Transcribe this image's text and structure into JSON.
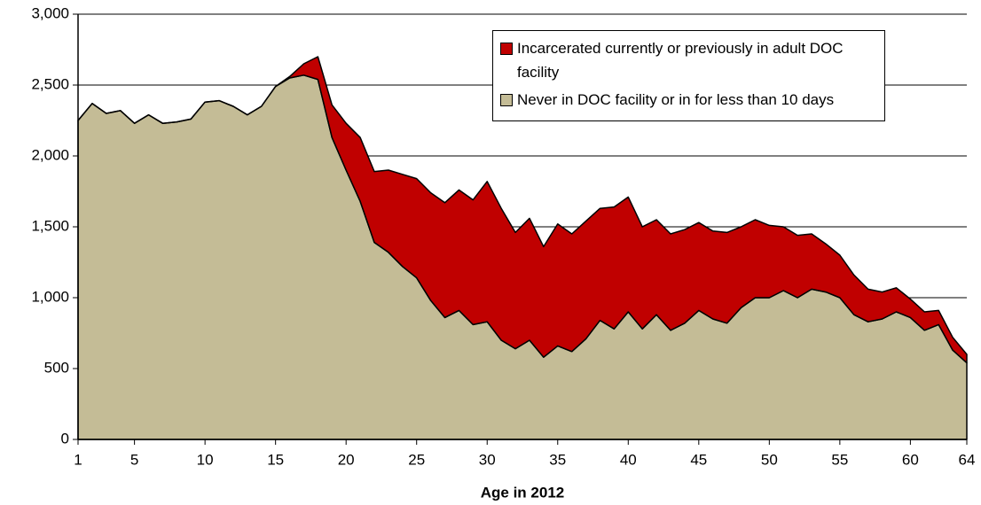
{
  "chart_data": {
    "type": "stacked_area",
    "x_label": "Age in 2012",
    "x": [
      1,
      2,
      3,
      4,
      5,
      6,
      7,
      8,
      9,
      10,
      11,
      12,
      13,
      14,
      15,
      16,
      17,
      18,
      19,
      20,
      21,
      22,
      23,
      24,
      25,
      26,
      27,
      28,
      29,
      30,
      31,
      32,
      33,
      34,
      35,
      36,
      37,
      38,
      39,
      40,
      41,
      42,
      43,
      44,
      45,
      46,
      47,
      48,
      49,
      50,
      51,
      52,
      53,
      54,
      55,
      56,
      57,
      58,
      59,
      60,
      61,
      62,
      63,
      64
    ],
    "series": [
      {
        "name": "Never in DOC facility or in for less than 10 days",
        "color": "#c4bc96",
        "values": [
          2250,
          2370,
          2300,
          2320,
          2230,
          2290,
          2230,
          2240,
          2260,
          2380,
          2390,
          2350,
          2290,
          2350,
          2490,
          2550,
          2570,
          2540,
          2130,
          1900,
          1680,
          1390,
          1320,
          1220,
          1140,
          980,
          860,
          910,
          810,
          830,
          700,
          640,
          700,
          580,
          660,
          620,
          710,
          840,
          780,
          900,
          780,
          880,
          770,
          820,
          910,
          850,
          820,
          930,
          1000,
          1000,
          1050,
          1000,
          1060,
          1040,
          1000,
          880,
          830,
          850,
          900,
          860,
          770,
          810,
          630,
          540
        ]
      },
      {
        "name": "Incarcerated currently or previously in adult DOC facility",
        "color": "#c00000",
        "values": [
          0,
          0,
          0,
          0,
          0,
          0,
          0,
          0,
          0,
          0,
          0,
          0,
          0,
          0,
          0,
          10,
          80,
          160,
          230,
          330,
          450,
          500,
          580,
          650,
          700,
          760,
          810,
          850,
          880,
          990,
          930,
          820,
          860,
          780,
          860,
          830,
          830,
          790,
          860,
          810,
          720,
          670,
          680,
          660,
          620,
          620,
          640,
          570,
          550,
          510,
          450,
          440,
          390,
          340,
          300,
          280,
          230,
          190,
          170,
          130,
          130,
          100,
          90,
          60
        ]
      }
    ],
    "xlim": [
      1,
      64
    ],
    "xticks": [
      1,
      5,
      10,
      15,
      20,
      25,
      30,
      35,
      40,
      45,
      50,
      55,
      60,
      64
    ],
    "ylim": [
      0,
      3000
    ],
    "yticks": [
      0,
      500,
      {
        "value": 1000,
        "label": "1,000"
      },
      {
        "value": 1500,
        "label": "1,500"
      },
      {
        "value": 2000,
        "label": "2,000"
      },
      {
        "value": 2500,
        "label": "2,500"
      },
      {
        "value": 3000,
        "label": "3,000"
      }
    ],
    "grid": true,
    "legend": "upper right"
  }
}
